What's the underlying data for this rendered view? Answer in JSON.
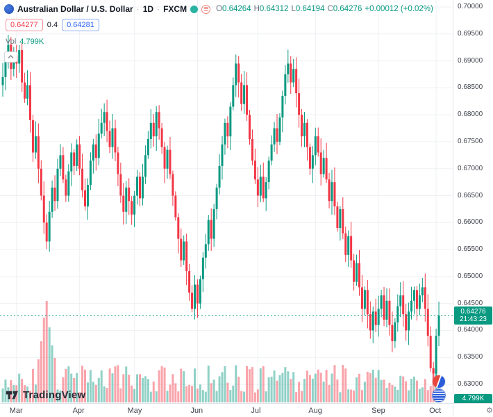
{
  "header": {
    "symbol": "Australian Dollar / U.S. Dollar",
    "sep": "·",
    "timeframe": "1D",
    "exchange": "FXCM",
    "ohlc": {
      "o_label": "O",
      "o_value": "0.64264",
      "h_label": "H",
      "h_value": "0.64312",
      "l_label": "L",
      "l_value": "0.64194",
      "c_label": "C",
      "c_value": "0.64276",
      "change": "+0.00012 (+0.02%)"
    },
    "bid": "0.64277",
    "spread": "0.4",
    "ask": "0.64281",
    "vol_label": "Vol",
    "vol_value": "4.799K"
  },
  "axis": {
    "current_price": "0.64276",
    "countdown": "21:43:23",
    "volume_badge": "4.799K"
  },
  "footer": {
    "brand": "TradingView"
  },
  "colors": {
    "up": "#089981",
    "down": "#f23645",
    "up_volume": "rgba(8,153,129,0.45)",
    "down_volume": "rgba(242,54,69,0.45)",
    "grid": "#eef0f3",
    "bid": "#f23645",
    "ask": "#2962ff",
    "axis_text": "#40434d"
  },
  "chart_data": {
    "type": "candlestick",
    "symbol": "AUD/USD",
    "timeframe": "1D",
    "price_range": [
      0.63,
      0.7
    ],
    "grid_step": 0.005,
    "y_ticks": [
      "0.70000",
      "0.69500",
      "0.69000",
      "0.68500",
      "0.68000",
      "0.67500",
      "0.67000",
      "0.66500",
      "0.66000",
      "0.65500",
      "0.65000",
      "0.64500",
      "0.64000",
      "0.63500",
      "0.63000"
    ],
    "month_tick_labels": [
      "Mar",
      "Apr",
      "May",
      "Jun",
      "Jul",
      "Aug",
      "Sep",
      "Oct"
    ],
    "month_tick_indices": [
      5,
      28,
      48,
      71,
      93,
      114,
      137,
      158
    ],
    "closes": [
      0.687,
      0.6905,
      0.693,
      0.6885,
      0.691,
      0.6895,
      0.692,
      0.686,
      0.683,
      0.6855,
      0.679,
      0.673,
      0.676,
      0.67,
      0.665,
      0.66,
      0.6565,
      0.662,
      0.6665,
      0.664,
      0.67,
      0.6725,
      0.668,
      0.665,
      0.6695,
      0.673,
      0.6705,
      0.6745,
      0.67,
      0.666,
      0.663,
      0.667,
      0.6715,
      0.6745,
      0.672,
      0.6765,
      0.6785,
      0.6805,
      0.677,
      0.674,
      0.6775,
      0.673,
      0.669,
      0.665,
      0.662,
      0.6665,
      0.664,
      0.6615,
      0.665,
      0.6685,
      0.6645,
      0.6685,
      0.6725,
      0.6755,
      0.6785,
      0.676,
      0.6805,
      0.6775,
      0.674,
      0.67,
      0.6735,
      0.669,
      0.665,
      0.661,
      0.657,
      0.653,
      0.6565,
      0.651,
      0.647,
      0.644,
      0.6485,
      0.645,
      0.6495,
      0.6535,
      0.656,
      0.6605,
      0.657,
      0.6625,
      0.6665,
      0.6705,
      0.6745,
      0.6785,
      0.676,
      0.6815,
      0.6855,
      0.6895,
      0.686,
      0.682,
      0.6855,
      0.68,
      0.6755,
      0.6715,
      0.668,
      0.665,
      0.6685,
      0.6645,
      0.6675,
      0.6715,
      0.6745,
      0.6775,
      0.675,
      0.6795,
      0.6835,
      0.6875,
      0.6895,
      0.686,
      0.6885,
      0.684,
      0.68,
      0.676,
      0.6785,
      0.674,
      0.67,
      0.6725,
      0.676,
      0.673,
      0.669,
      0.672,
      0.668,
      0.664,
      0.6675,
      0.663,
      0.659,
      0.6625,
      0.658,
      0.654,
      0.6575,
      0.653,
      0.649,
      0.6525,
      0.648,
      0.644,
      0.6475,
      0.643,
      0.64,
      0.6435,
      0.641,
      0.644,
      0.6465,
      0.642,
      0.6455,
      0.641,
      0.638,
      0.6415,
      0.6445,
      0.6465,
      0.643,
      0.64,
      0.6435,
      0.6455,
      0.6475,
      0.644,
      0.6465,
      0.648,
      0.644,
      0.639,
      0.633,
      0.632,
      0.639,
      0.64276
    ],
    "last_price": 0.64276,
    "last_volume": "4.799K"
  }
}
